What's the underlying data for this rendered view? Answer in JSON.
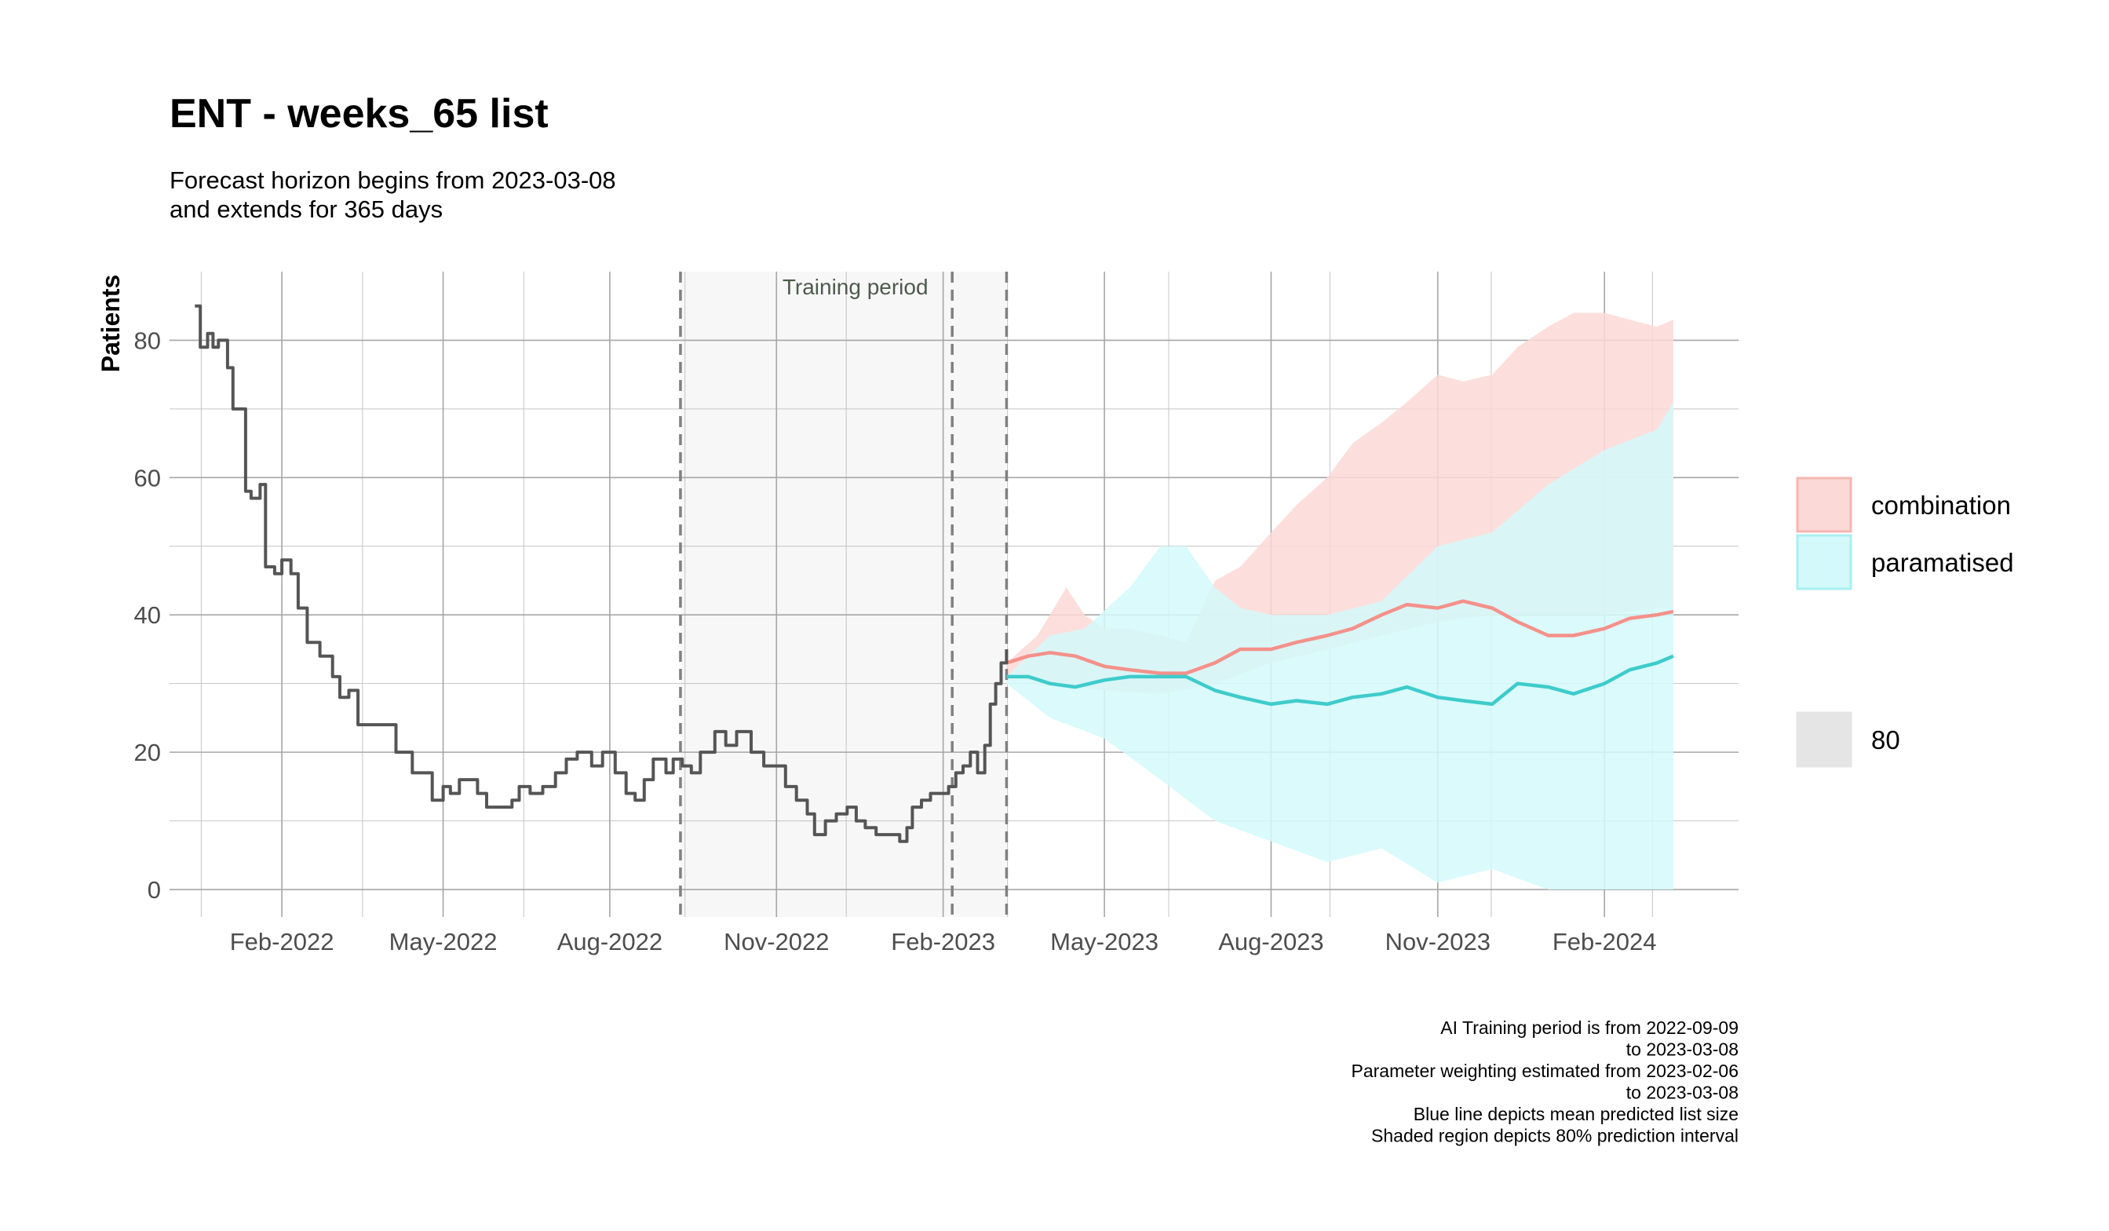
{
  "chart_data": {
    "type": "line",
    "title": "ENT - weeks_65 list",
    "subtitle_lines": [
      "Forecast horizon begins from 2023-03-08",
      "and extends for 365 days"
    ],
    "xlabel": "",
    "ylabel": "Patients",
    "x_range": [
      "2021-12-01",
      "2024-04-15"
    ],
    "ylim": [
      -4,
      90
    ],
    "x_ticks": [
      {
        "date": "2022-02-01",
        "label": "Feb-2022"
      },
      {
        "date": "2022-05-01",
        "label": "May-2022"
      },
      {
        "date": "2022-08-01",
        "label": "Aug-2022"
      },
      {
        "date": "2022-11-01",
        "label": "Nov-2022"
      },
      {
        "date": "2023-02-01",
        "label": "Feb-2023"
      },
      {
        "date": "2023-05-01",
        "label": "May-2023"
      },
      {
        "date": "2023-08-01",
        "label": "Aug-2023"
      },
      {
        "date": "2023-11-01",
        "label": "Nov-2023"
      },
      {
        "date": "2024-02-01",
        "label": "Feb-2024"
      }
    ],
    "y_ticks": [
      0,
      20,
      40,
      60,
      80
    ],
    "grid": true,
    "training_period": {
      "start": "2022-09-09",
      "end": "2023-03-08",
      "label": "Training period"
    },
    "vlines": [
      "2022-09-09",
      "2023-02-06",
      "2023-03-08"
    ],
    "observed": {
      "color": "#555555",
      "points": [
        [
          "2021-12-15",
          85
        ],
        [
          "2021-12-18",
          79
        ],
        [
          "2021-12-22",
          81
        ],
        [
          "2021-12-25",
          79
        ],
        [
          "2021-12-28",
          80
        ],
        [
          "2022-01-02",
          76
        ],
        [
          "2022-01-05",
          70
        ],
        [
          "2022-01-09",
          70
        ],
        [
          "2022-01-12",
          58
        ],
        [
          "2022-01-15",
          57
        ],
        [
          "2022-01-20",
          59
        ],
        [
          "2022-01-23",
          47
        ],
        [
          "2022-01-28",
          46
        ],
        [
          "2022-02-01",
          48
        ],
        [
          "2022-02-06",
          46
        ],
        [
          "2022-02-10",
          41
        ],
        [
          "2022-02-15",
          36
        ],
        [
          "2022-02-22",
          34
        ],
        [
          "2022-03-01",
          31
        ],
        [
          "2022-03-05",
          28
        ],
        [
          "2022-03-10",
          29
        ],
        [
          "2022-03-15",
          24
        ],
        [
          "2022-03-22",
          24
        ],
        [
          "2022-04-01",
          24
        ],
        [
          "2022-04-05",
          20
        ],
        [
          "2022-04-10",
          20
        ],
        [
          "2022-04-14",
          17
        ],
        [
          "2022-04-20",
          17
        ],
        [
          "2022-04-25",
          13
        ],
        [
          "2022-05-01",
          15
        ],
        [
          "2022-05-05",
          14
        ],
        [
          "2022-05-10",
          16
        ],
        [
          "2022-05-15",
          16
        ],
        [
          "2022-05-20",
          14
        ],
        [
          "2022-05-25",
          12
        ],
        [
          "2022-06-01",
          12
        ],
        [
          "2022-06-08",
          13
        ],
        [
          "2022-06-12",
          15
        ],
        [
          "2022-06-18",
          14
        ],
        [
          "2022-06-25",
          15
        ],
        [
          "2022-07-02",
          17
        ],
        [
          "2022-07-08",
          19
        ],
        [
          "2022-07-14",
          20
        ],
        [
          "2022-07-22",
          18
        ],
        [
          "2022-07-28",
          20
        ],
        [
          "2022-08-04",
          17
        ],
        [
          "2022-08-10",
          14
        ],
        [
          "2022-08-15",
          13
        ],
        [
          "2022-08-20",
          16
        ],
        [
          "2022-08-25",
          19
        ],
        [
          "2022-09-01",
          17
        ],
        [
          "2022-09-05",
          19
        ],
        [
          "2022-09-10",
          18
        ],
        [
          "2022-09-15",
          17
        ],
        [
          "2022-09-20",
          20
        ],
        [
          "2022-09-28",
          23
        ],
        [
          "2022-10-04",
          21
        ],
        [
          "2022-10-10",
          23
        ],
        [
          "2022-10-18",
          20
        ],
        [
          "2022-10-25",
          18
        ],
        [
          "2022-11-01",
          18
        ],
        [
          "2022-11-06",
          15
        ],
        [
          "2022-11-12",
          13
        ],
        [
          "2022-11-18",
          11
        ],
        [
          "2022-11-22",
          8
        ],
        [
          "2022-11-28",
          10
        ],
        [
          "2022-12-04",
          11
        ],
        [
          "2022-12-10",
          12
        ],
        [
          "2022-12-15",
          10
        ],
        [
          "2022-12-20",
          9
        ],
        [
          "2022-12-26",
          8
        ],
        [
          "2023-01-02",
          8
        ],
        [
          "2023-01-08",
          7
        ],
        [
          "2023-01-12",
          9
        ],
        [
          "2023-01-15",
          12
        ],
        [
          "2023-01-20",
          13
        ],
        [
          "2023-01-25",
          14
        ],
        [
          "2023-01-30",
          14
        ],
        [
          "2023-02-04",
          15
        ],
        [
          "2023-02-08",
          17
        ],
        [
          "2023-02-12",
          18
        ],
        [
          "2023-02-16",
          20
        ],
        [
          "2023-02-20",
          17
        ],
        [
          "2023-02-24",
          21
        ],
        [
          "2023-02-27",
          27
        ],
        [
          "2023-03-02",
          30
        ],
        [
          "2023-03-05",
          33
        ],
        [
          "2023-03-08",
          35
        ]
      ]
    },
    "series": [
      {
        "name": "combination",
        "color": "#f4918a",
        "fill": "#fbd9d6",
        "mean": [
          [
            "2023-03-08",
            33
          ],
          [
            "2023-03-20",
            34
          ],
          [
            "2023-04-01",
            34.5
          ],
          [
            "2023-04-15",
            34
          ],
          [
            "2023-05-01",
            32.5
          ],
          [
            "2023-05-15",
            32
          ],
          [
            "2023-06-01",
            31.5
          ],
          [
            "2023-06-15",
            31.5
          ],
          [
            "2023-07-01",
            33
          ],
          [
            "2023-07-15",
            35
          ],
          [
            "2023-08-01",
            35
          ],
          [
            "2023-08-15",
            36
          ],
          [
            "2023-09-01",
            37
          ],
          [
            "2023-09-15",
            38
          ],
          [
            "2023-10-01",
            40
          ],
          [
            "2023-10-15",
            41.5
          ],
          [
            "2023-11-01",
            41
          ],
          [
            "2023-11-15",
            42
          ],
          [
            "2023-12-01",
            41
          ],
          [
            "2023-12-15",
            39
          ],
          [
            "2024-01-01",
            37
          ],
          [
            "2024-01-15",
            37
          ],
          [
            "2024-02-01",
            38
          ],
          [
            "2024-02-15",
            39.5
          ],
          [
            "2024-03-01",
            40
          ],
          [
            "2024-03-10",
            40.5
          ]
        ],
        "lower": [
          [
            "2023-03-08",
            31
          ],
          [
            "2023-04-01",
            30
          ],
          [
            "2023-05-01",
            29
          ],
          [
            "2023-06-01",
            28.5
          ],
          [
            "2023-07-01",
            30
          ],
          [
            "2023-08-01",
            33
          ],
          [
            "2023-09-01",
            35
          ],
          [
            "2023-10-01",
            37
          ],
          [
            "2023-11-01",
            39
          ],
          [
            "2023-12-01",
            40
          ],
          [
            "2024-01-01",
            40
          ],
          [
            "2024-02-01",
            40
          ],
          [
            "2024-03-01",
            41
          ],
          [
            "2024-03-10",
            41
          ]
        ],
        "upper": [
          [
            "2023-03-08",
            33
          ],
          [
            "2023-03-25",
            37
          ],
          [
            "2023-04-10",
            44
          ],
          [
            "2023-04-20",
            40
          ],
          [
            "2023-05-01",
            38
          ],
          [
            "2023-05-15",
            38
          ],
          [
            "2023-06-01",
            37
          ],
          [
            "2023-06-15",
            36
          ],
          [
            "2023-07-01",
            45
          ],
          [
            "2023-07-15",
            47
          ],
          [
            "2023-08-01",
            52
          ],
          [
            "2023-08-15",
            56
          ],
          [
            "2023-09-01",
            60
          ],
          [
            "2023-09-15",
            65
          ],
          [
            "2023-10-01",
            68
          ],
          [
            "2023-10-15",
            71
          ],
          [
            "2023-11-01",
            75
          ],
          [
            "2023-11-15",
            74
          ],
          [
            "2023-12-01",
            75
          ],
          [
            "2023-12-15",
            79
          ],
          [
            "2024-01-01",
            82
          ],
          [
            "2024-01-15",
            84
          ],
          [
            "2024-02-01",
            84
          ],
          [
            "2024-02-15",
            83
          ],
          [
            "2024-03-01",
            82
          ],
          [
            "2024-03-10",
            83
          ]
        ]
      },
      {
        "name": "paramatised",
        "color": "#3ecbcb",
        "fill": "#d3f9fa",
        "mean": [
          [
            "2023-03-08",
            31
          ],
          [
            "2023-03-20",
            31
          ],
          [
            "2023-04-01",
            30
          ],
          [
            "2023-04-15",
            29.5
          ],
          [
            "2023-05-01",
            30.5
          ],
          [
            "2023-05-15",
            31
          ],
          [
            "2023-06-01",
            31
          ],
          [
            "2023-06-15",
            31
          ],
          [
            "2023-07-01",
            29
          ],
          [
            "2023-07-15",
            28
          ],
          [
            "2023-08-01",
            27
          ],
          [
            "2023-08-15",
            27.5
          ],
          [
            "2023-09-01",
            27
          ],
          [
            "2023-09-15",
            28
          ],
          [
            "2023-10-01",
            28.5
          ],
          [
            "2023-10-15",
            29.5
          ],
          [
            "2023-11-01",
            28
          ],
          [
            "2023-11-15",
            27.5
          ],
          [
            "2023-12-01",
            27
          ],
          [
            "2023-12-15",
            30
          ],
          [
            "2024-01-01",
            29.5
          ],
          [
            "2024-01-15",
            28.5
          ],
          [
            "2024-02-01",
            30
          ],
          [
            "2024-02-15",
            32
          ],
          [
            "2024-03-01",
            33
          ],
          [
            "2024-03-10",
            34
          ]
        ],
        "lower": [
          [
            "2023-03-08",
            30
          ],
          [
            "2023-04-01",
            25
          ],
          [
            "2023-05-01",
            22
          ],
          [
            "2023-06-01",
            16
          ],
          [
            "2023-07-01",
            10
          ],
          [
            "2023-08-01",
            7
          ],
          [
            "2023-09-01",
            4
          ],
          [
            "2023-10-01",
            6
          ],
          [
            "2023-11-01",
            1
          ],
          [
            "2023-12-01",
            3
          ],
          [
            "2024-01-01",
            0
          ],
          [
            "2024-02-01",
            0
          ],
          [
            "2024-03-01",
            0
          ],
          [
            "2024-03-10",
            0
          ]
        ],
        "upper": [
          [
            "2023-03-08",
            31
          ],
          [
            "2023-04-01",
            37
          ],
          [
            "2023-04-20",
            38
          ],
          [
            "2023-05-15",
            44
          ],
          [
            "2023-06-01",
            50
          ],
          [
            "2023-06-15",
            50
          ],
          [
            "2023-07-01",
            44
          ],
          [
            "2023-07-15",
            41
          ],
          [
            "2023-08-01",
            40
          ],
          [
            "2023-09-01",
            40
          ],
          [
            "2023-10-01",
            42
          ],
          [
            "2023-11-01",
            50
          ],
          [
            "2023-12-01",
            52
          ],
          [
            "2024-01-01",
            59
          ],
          [
            "2024-02-01",
            64
          ],
          [
            "2024-03-01",
            67
          ],
          [
            "2024-03-10",
            71
          ]
        ]
      }
    ],
    "legend": {
      "placement": "right",
      "items": [
        {
          "label": "combination",
          "fill": "#fbd9d6",
          "border": "#f4b6b0"
        },
        {
          "label": "paramatised",
          "fill": "#d3f9fa",
          "border": "#a9eef0"
        },
        {
          "label": "80",
          "fill": "#e5e5e5",
          "border": "#e5e5e5"
        }
      ]
    },
    "caption_lines": [
      "AI Training period is from 2022-09-09",
      "to 2023-03-08",
      "Parameter weighting estimated from 2023-02-06",
      "to 2023-03-08",
      "Blue line depicts mean predicted list size",
      "Shaded region depicts 80% prediction interval"
    ]
  }
}
